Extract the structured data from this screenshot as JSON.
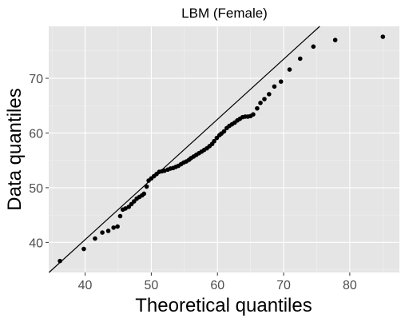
{
  "chart_data": {
    "type": "scatter",
    "title": "LBM (Female)",
    "xlabel": "Theoretical quantiles",
    "ylabel": "Data quantiles",
    "xlim": [
      34.5,
      87.5
    ],
    "ylim": [
      34.5,
      79.5
    ],
    "x_ticks": [
      40,
      50,
      60,
      70,
      80
    ],
    "y_ticks": [
      40,
      50,
      60,
      70
    ],
    "grid": true,
    "reference_line": {
      "slope": 1.1,
      "intercept": -3.5
    },
    "series": [
      {
        "points": [
          [
            36.2,
            36.6
          ],
          [
            39.8,
            38.8
          ],
          [
            41.5,
            40.7
          ],
          [
            42.6,
            41.8
          ],
          [
            43.5,
            42.1
          ],
          [
            44.3,
            42.7
          ],
          [
            44.9,
            42.9
          ],
          [
            45.3,
            44.8
          ],
          [
            45.7,
            46.0
          ],
          [
            46.1,
            46.2
          ],
          [
            46.6,
            46.5
          ],
          [
            47.0,
            47.0
          ],
          [
            47.4,
            47.5
          ],
          [
            47.8,
            48.0
          ],
          [
            48.2,
            48.3
          ],
          [
            48.6,
            48.6
          ],
          [
            48.9,
            48.9
          ],
          [
            49.3,
            50.2
          ],
          [
            49.6,
            51.3
          ],
          [
            50.0,
            51.7
          ],
          [
            50.4,
            52.1
          ],
          [
            50.8,
            52.5
          ],
          [
            51.2,
            52.9
          ],
          [
            51.6,
            53.0
          ],
          [
            52.0,
            53.1
          ],
          [
            52.5,
            53.3
          ],
          [
            52.9,
            53.5
          ],
          [
            53.3,
            53.6
          ],
          [
            53.7,
            53.8
          ],
          [
            54.1,
            54.0
          ],
          [
            54.5,
            54.3
          ],
          [
            54.9,
            54.6
          ],
          [
            55.3,
            54.8
          ],
          [
            55.7,
            55.1
          ],
          [
            56.0,
            55.4
          ],
          [
            56.4,
            55.7
          ],
          [
            56.8,
            56.0
          ],
          [
            57.2,
            56.3
          ],
          [
            57.6,
            56.6
          ],
          [
            58.0,
            56.9
          ],
          [
            58.4,
            57.2
          ],
          [
            58.8,
            57.6
          ],
          [
            59.2,
            58.0
          ],
          [
            59.5,
            58.5
          ],
          [
            59.9,
            59.1
          ],
          [
            60.3,
            59.6
          ],
          [
            60.6,
            59.9
          ],
          [
            61.0,
            60.3
          ],
          [
            61.4,
            60.9
          ],
          [
            61.8,
            61.3
          ],
          [
            62.2,
            61.6
          ],
          [
            62.6,
            61.9
          ],
          [
            63.0,
            62.3
          ],
          [
            63.4,
            62.6
          ],
          [
            63.8,
            62.9
          ],
          [
            64.2,
            63.0
          ],
          [
            64.6,
            63.0
          ],
          [
            65.0,
            63.1
          ],
          [
            65.4,
            63.4
          ],
          [
            66.0,
            64.5
          ],
          [
            66.5,
            65.5
          ],
          [
            67.1,
            66.2
          ],
          [
            67.8,
            67.1
          ],
          [
            68.6,
            68.5
          ],
          [
            69.6,
            69.4
          ],
          [
            70.9,
            71.6
          ],
          [
            72.5,
            73.6
          ],
          [
            74.5,
            75.8
          ],
          [
            77.8,
            77.0
          ],
          [
            85.0,
            77.6
          ]
        ]
      }
    ]
  }
}
